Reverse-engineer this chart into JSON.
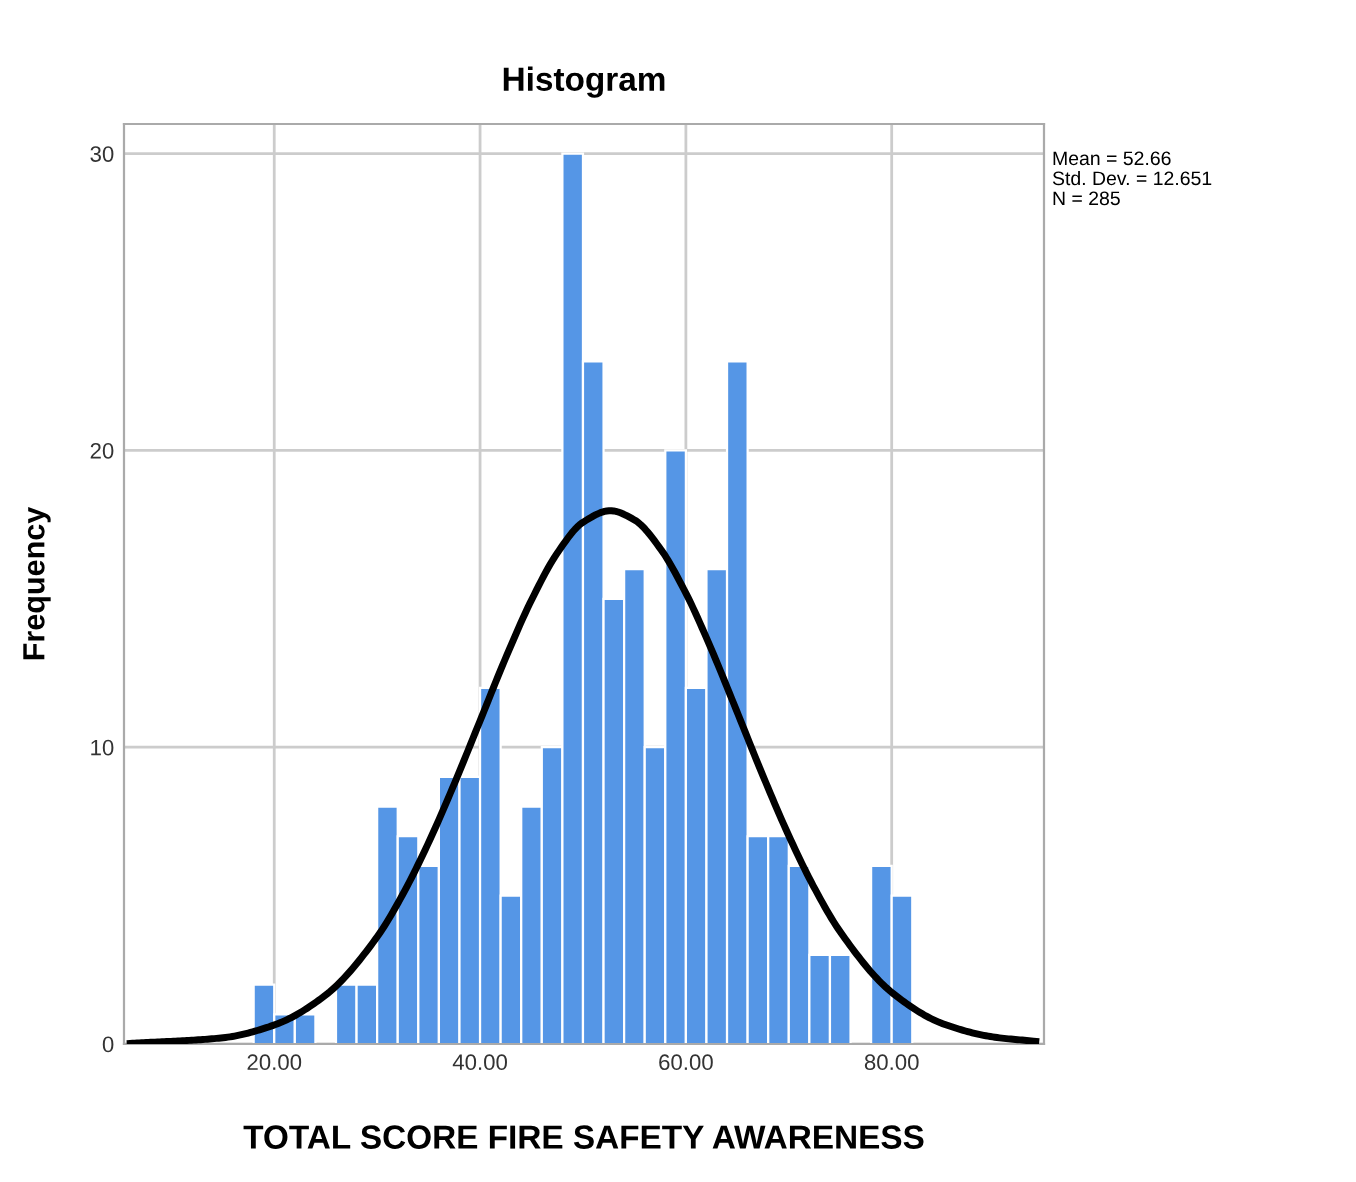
{
  "chart_data": {
    "type": "histogram",
    "title": "Histogram",
    "xlabel": "TOTAL SCORE FIRE SAFETY AWARENESS",
    "ylabel": "Frequency",
    "bins": [
      18,
      20,
      22,
      24,
      26,
      28,
      30,
      32,
      34,
      36,
      38,
      40,
      42,
      44,
      46,
      48,
      50,
      52,
      54,
      56,
      58,
      60,
      62,
      64,
      66,
      68,
      70,
      72,
      74,
      76,
      78,
      80,
      82
    ],
    "values": [
      2,
      1,
      1,
      0,
      2,
      2,
      8,
      7,
      6,
      9,
      9,
      12,
      5,
      8,
      10,
      30,
      23,
      15,
      16,
      10,
      20,
      12,
      16,
      23,
      7,
      7,
      6,
      3,
      3,
      0,
      6,
      5
    ],
    "color": "#5596e6",
    "series": [
      {
        "type": "line",
        "color": "#000000",
        "x": [
          6,
          15,
          20,
          25,
          30,
          32.5,
          35,
          37.5,
          40,
          42.5,
          45,
          47.5,
          50,
          52.66,
          55,
          57.5,
          60,
          62.5,
          65,
          67.5,
          70,
          72.5,
          75,
          80,
          85,
          90,
          94
        ],
        "values": [
          0.02,
          0.21,
          0.64,
          1.65,
          3.61,
          5.05,
          6.79,
          8.77,
          10.89,
          13.02,
          14.96,
          16.54,
          17.58,
          17.97,
          17.66,
          16.7,
          15.19,
          13.28,
          11.17,
          9.03,
          7.02,
          5.25,
          3.78,
          1.74,
          0.68,
          0.23,
          0.09
        ]
      }
    ],
    "xlim": [
      5.4,
      94.8
    ],
    "ylim": [
      0,
      31
    ],
    "xticks": [
      {
        "value": 20,
        "label": "20.00"
      },
      {
        "value": 40,
        "label": "40.00"
      },
      {
        "value": 60,
        "label": "60.00"
      },
      {
        "value": 80,
        "label": "80.00"
      }
    ],
    "yticks": [
      0,
      10,
      20,
      30
    ],
    "grid": true,
    "annotations": [
      "Mean = 52.66",
      "Std. Dev. = 12.651",
      "N = 285"
    ]
  }
}
